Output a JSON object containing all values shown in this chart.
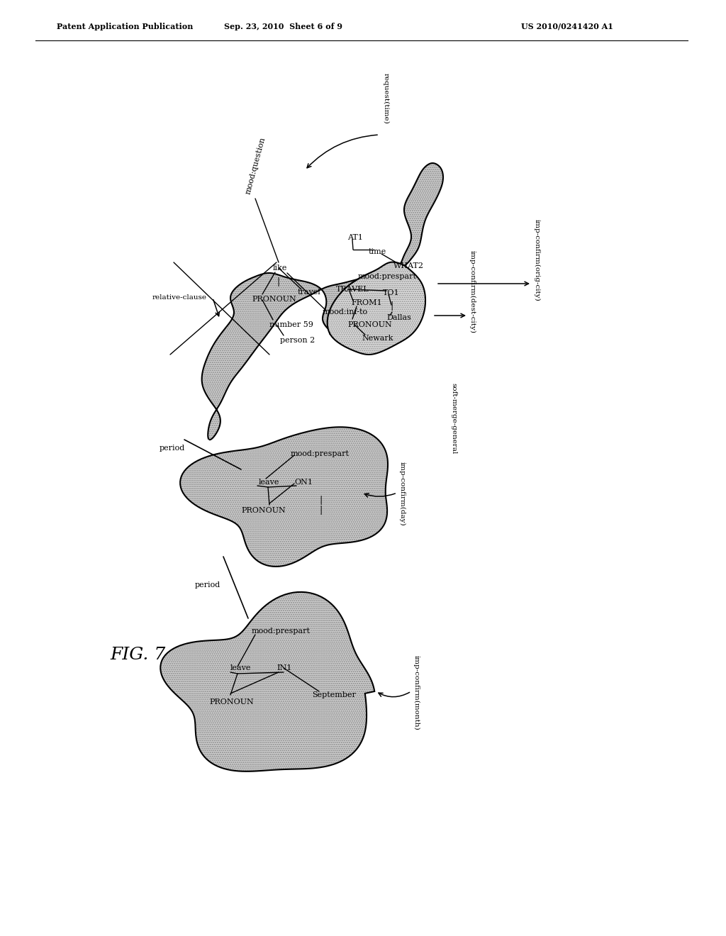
{
  "header_left": "Patent Application Publication",
  "header_mid": "Sep. 23, 2010  Sheet 6 of 9",
  "header_right": "US 2010/0241420 A1",
  "fig_label": "FIG. 7"
}
